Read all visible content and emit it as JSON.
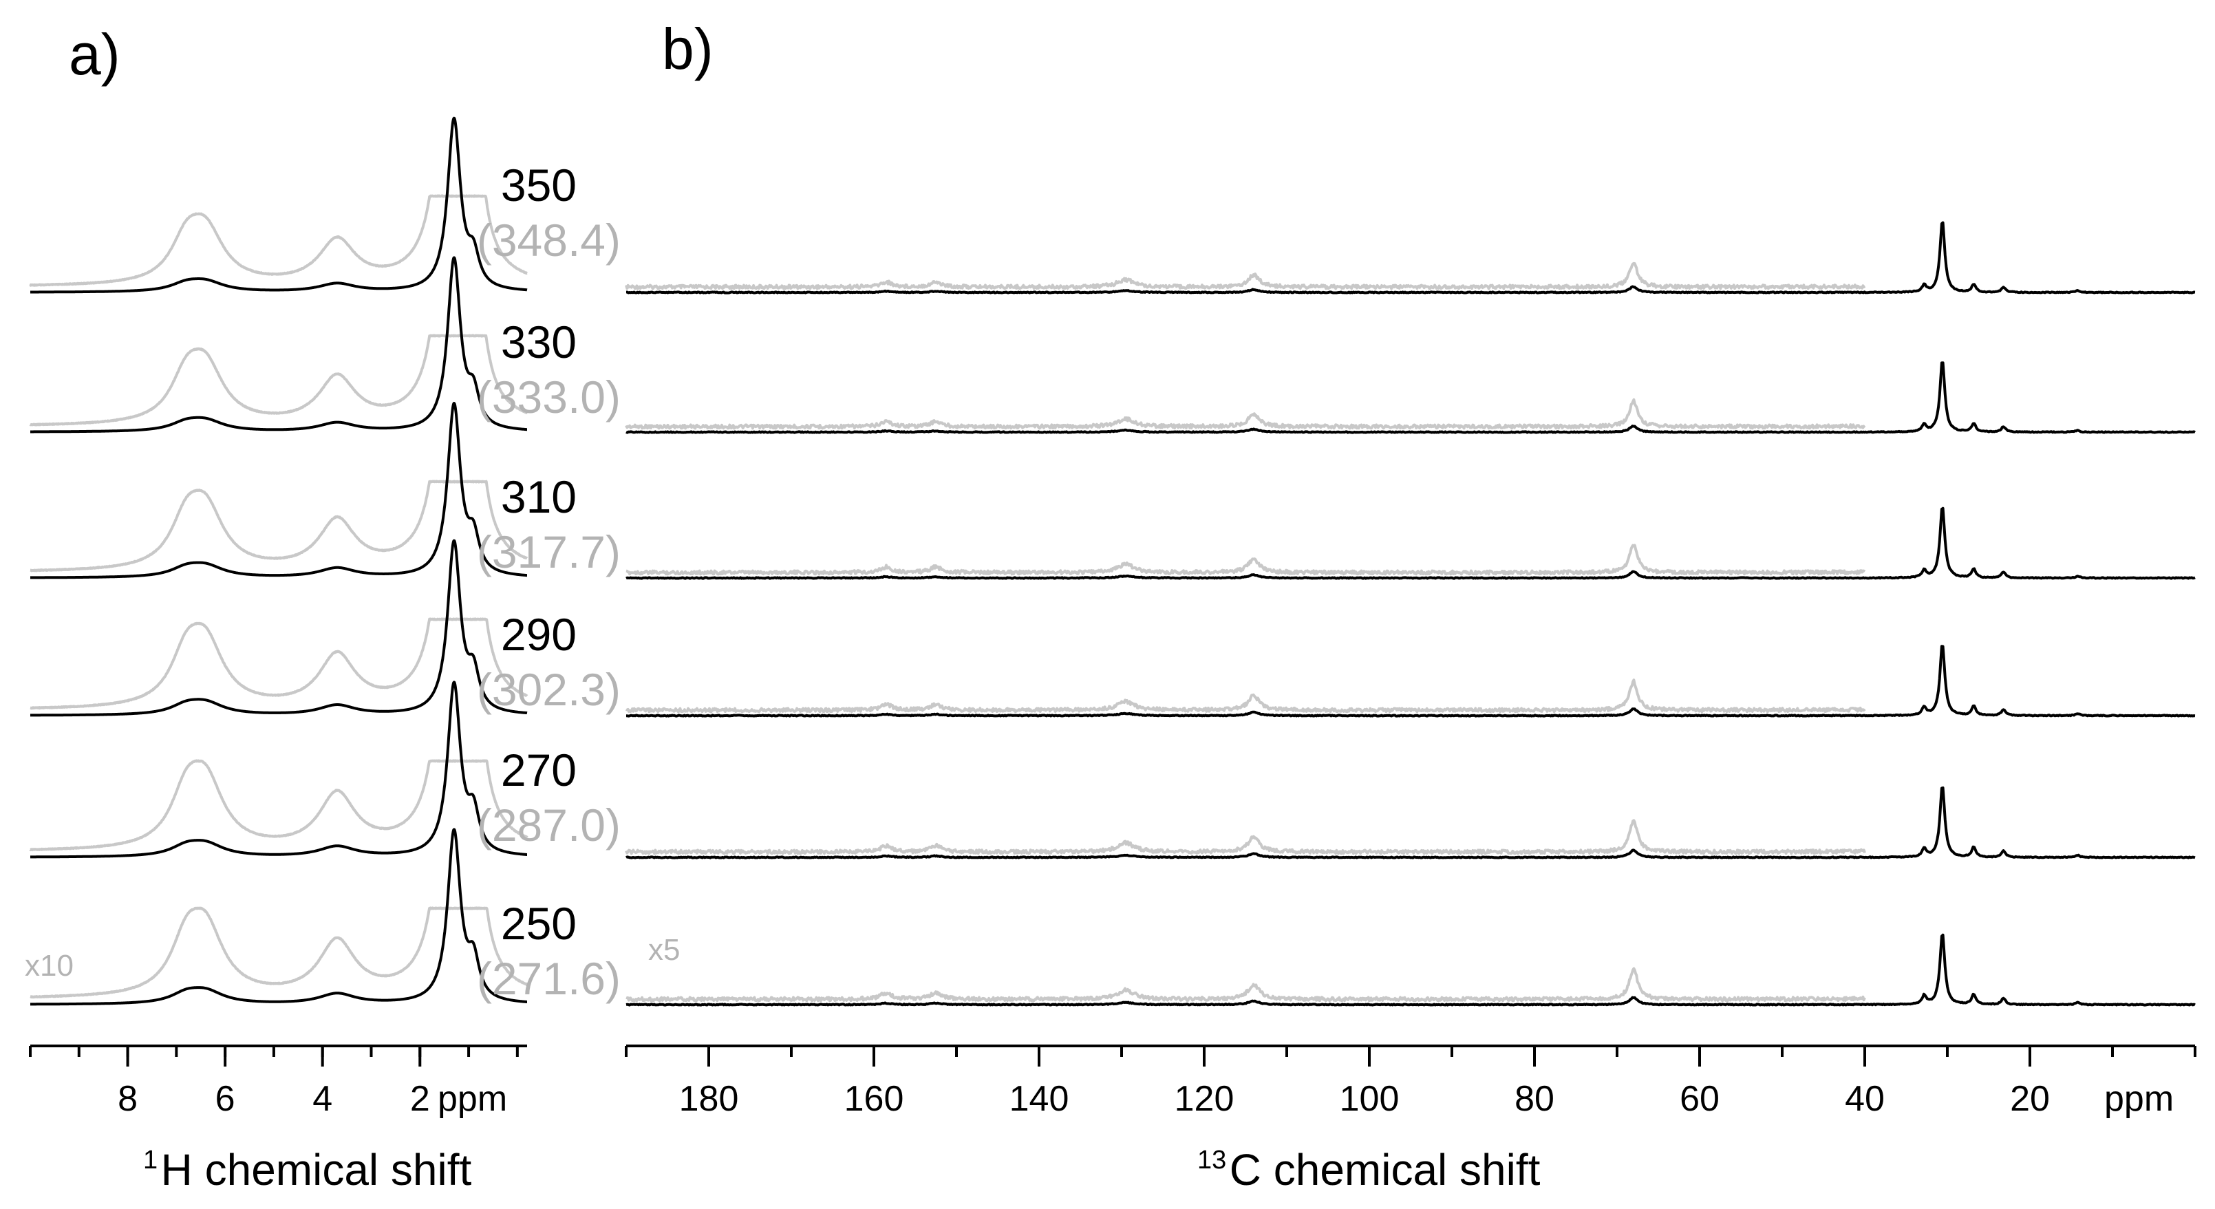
{
  "panels": {
    "a_label": "a)",
    "b_label": "b)"
  },
  "colors": {
    "unscaled": "#000000",
    "scaled": "#c8c8c8",
    "calibrated_label": "#b3b3b3"
  },
  "chart_data": [
    {
      "type": "line",
      "panel": "a",
      "title": "a)",
      "xlabel_sup": "1",
      "xlabel_text": "H chemical shift",
      "xunit": "ppm",
      "xlim": [
        10,
        -0.2
      ],
      "x_reversed": true,
      "xticks": [
        8,
        6,
        4,
        2
      ],
      "scale_note": "x10",
      "series_style": [
        "black trace: original spectrum",
        "grey trace: vertically scaled spectrum"
      ],
      "peaks": [
        {
          "center": 6.8,
          "width": 0.38,
          "rel_height": 0.05
        },
        {
          "center": 6.4,
          "width": 0.45,
          "rel_height": 0.07
        },
        {
          "center": 3.7,
          "width": 0.45,
          "rel_height": 0.06
        },
        {
          "center": 1.3,
          "width": 0.16,
          "rel_height": 1.0
        },
        {
          "center": 0.9,
          "width": 0.14,
          "rel_height": 0.22
        }
      ],
      "grey_scale_factor": 10
    },
    {
      "type": "line",
      "panel": "b",
      "title": "b)",
      "xlabel_sup": "13",
      "xlabel_text": "C chemical shift",
      "xunit": "ppm",
      "xlim": [
        190,
        0
      ],
      "x_reversed": true,
      "xticks": [
        180,
        160,
        140,
        120,
        100,
        80,
        60,
        40,
        20
      ],
      "scale_note": "x5",
      "grey_trace_xrange": [
        190,
        40
      ],
      "series_style": [
        "black trace: original spectrum",
        "grey trace: vertically scaled spectrum"
      ],
      "peaks": [
        {
          "center": 158.5,
          "width": 0.8,
          "rel_height": 0.02
        },
        {
          "center": 152.5,
          "width": 0.8,
          "rel_height": 0.02
        },
        {
          "center": 129.5,
          "width": 1.2,
          "rel_height": 0.03
        },
        {
          "center": 114.0,
          "width": 0.8,
          "rel_height": 0.05
        },
        {
          "center": 68.0,
          "width": 0.6,
          "rel_height": 0.1
        },
        {
          "center": 32.8,
          "width": 0.3,
          "rel_height": 0.12
        },
        {
          "center": 30.6,
          "width": 0.35,
          "rel_height": 1.0
        },
        {
          "center": 26.8,
          "width": 0.3,
          "rel_height": 0.14
        },
        {
          "center": 23.2,
          "width": 0.3,
          "rel_height": 0.09
        },
        {
          "center": 14.2,
          "width": 0.3,
          "rel_height": 0.03
        }
      ],
      "grey_scale_factor": 5
    }
  ],
  "traces": [
    {
      "set_temperature": "350",
      "calibrated_temperature": "(348.4)",
      "peak_scale": 0.8
    },
    {
      "set_temperature": "330",
      "calibrated_temperature": "(333.0)",
      "peak_scale": 0.85
    },
    {
      "set_temperature": "310",
      "calibrated_temperature": "(317.7)",
      "peak_scale": 0.9
    },
    {
      "set_temperature": "290",
      "calibrated_temperature": "(302.3)",
      "peak_scale": 0.95
    },
    {
      "set_temperature": "270",
      "calibrated_temperature": "(287.0)",
      "peak_scale": 1.0
    },
    {
      "set_temperature": "250",
      "calibrated_temperature": "(271.6)",
      "peak_scale": 1.0
    }
  ]
}
